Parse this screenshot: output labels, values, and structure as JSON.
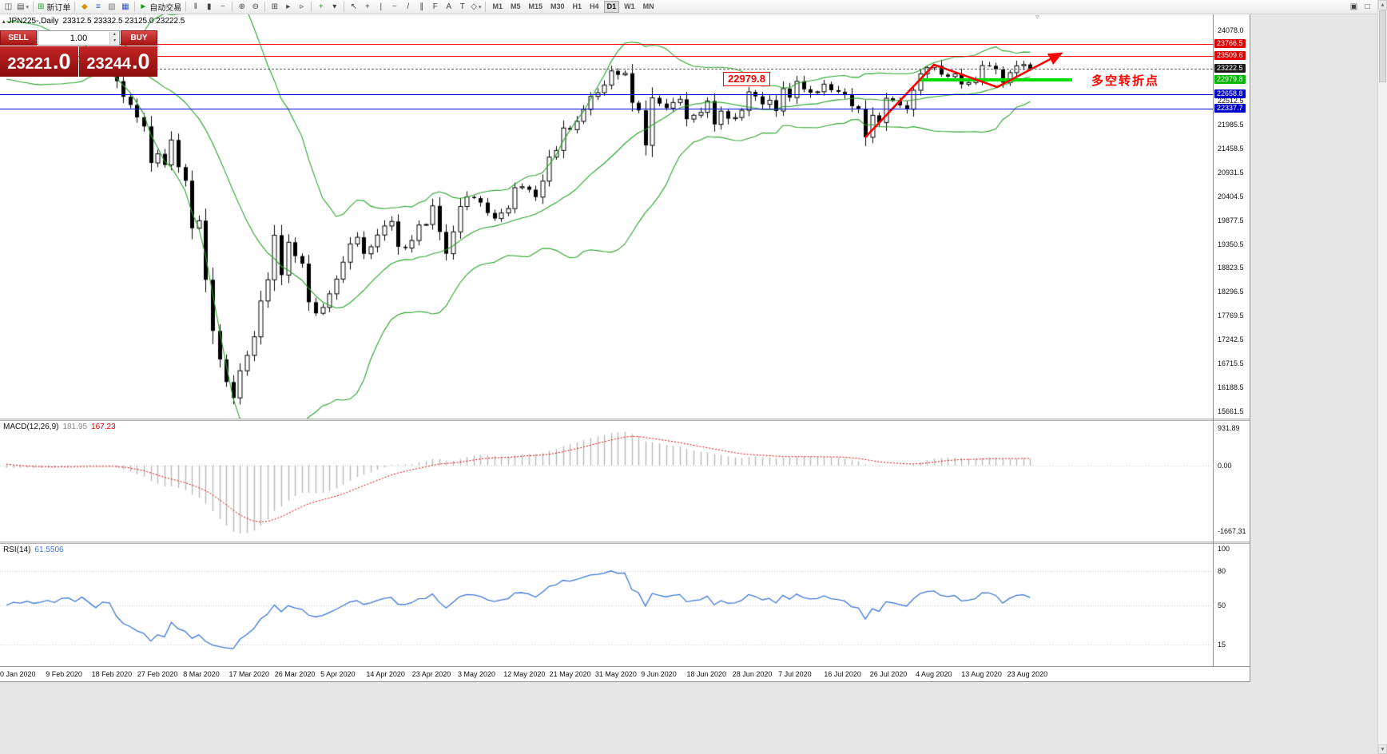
{
  "glyphs": {
    "one_click_toggle": "▴",
    "dropdown": "▾",
    "spinner_up": "▴",
    "spinner_down": "▾",
    "scroll_up": "▲",
    "scroll_down": "▼",
    "chart_shift_marker": "▿"
  },
  "colors": {
    "bollinger": "#28a428",
    "resistance_line": "#ff0000",
    "support_line": "#0000dd",
    "pivot_line": "#00dd00",
    "current_price_line": "#666666",
    "macd_histogram": "#b8b8b8",
    "macd_signal": "#e00000",
    "rsi_line": "#3c78d8",
    "candle_up": "#ffffff",
    "candle_down": "#000000",
    "annotation_red": "#ff0000"
  },
  "toolbar": {
    "left_items": [
      {
        "name": "new-chart",
        "glyph": "◫"
      },
      {
        "name": "chart-profiles",
        "glyph": "▤",
        "dropdown": true
      },
      {
        "sep": true
      },
      {
        "name": "new-order",
        "glyph": "⊞",
        "color": "#1a9c1a",
        "label": "新订单"
      },
      {
        "sep": true
      },
      {
        "name": "metaeditor",
        "glyph": "◆",
        "color": "#d89000"
      },
      {
        "name": "market-watch",
        "glyph": "≡",
        "color": "#3355bb"
      },
      {
        "name": "navigator",
        "glyph": "▧",
        "color": "#777777"
      },
      {
        "name": "terminal",
        "glyph": "▦",
        "color": "#3355bb"
      },
      {
        "sep": true
      },
      {
        "name": "autotrading",
        "glyph": "►",
        "color": "#18a018",
        "label": "自动交易"
      },
      {
        "sep": true
      },
      {
        "name": "bar-chart",
        "glyph": "‖"
      },
      {
        "name": "candlestick-chart",
        "glyph": "▮"
      },
      {
        "name": "line-chart",
        "glyph": "~"
      },
      {
        "sep": true
      },
      {
        "name": "zoom-in",
        "glyph": "⊕"
      },
      {
        "name": "zoom-out",
        "glyph": "⊖"
      },
      {
        "sep": true
      },
      {
        "name": "tile-windows",
        "glyph": "⊞"
      },
      {
        "name": "auto-scroll",
        "glyph": "▸"
      },
      {
        "name": "chart-shift",
        "glyph": "▹"
      },
      {
        "sep": true
      },
      {
        "name": "indicators",
        "glyph": "+",
        "color": "#18a018"
      },
      {
        "name": "indicator-list",
        "glyph": "▾"
      },
      {
        "sep": true
      },
      {
        "name": "cursor",
        "glyph": "↖"
      },
      {
        "name": "crosshair",
        "glyph": "+"
      },
      {
        "name": "vertical-line",
        "glyph": "|"
      },
      {
        "name": "horizontal-line",
        "glyph": "−"
      },
      {
        "name": "trendline",
        "glyph": "/"
      },
      {
        "name": "channel",
        "glyph": "∥"
      },
      {
        "name": "fibonacci",
        "glyph": "F"
      },
      {
        "name": "text",
        "glyph": "A"
      },
      {
        "name": "text-label",
        "glyph": "T"
      },
      {
        "name": "arrows",
        "glyph": "◇",
        "dropdown": true
      },
      {
        "sep": true
      }
    ],
    "timeframes": [
      "M1",
      "M5",
      "M15",
      "M30",
      "H1",
      "H4",
      "D1",
      "W1",
      "MN"
    ],
    "active_timeframe": "D1",
    "right_items": [
      {
        "name": "print",
        "glyph": "▣"
      },
      {
        "name": "print-preview",
        "glyph": "□"
      }
    ]
  },
  "chart_title": {
    "symbol_period": "JPN225-,Daily",
    "ohlc": "23312.5 23332.5 23125.0 23222.5"
  },
  "trade_panel": {
    "sell_label": "SELL",
    "buy_label": "BUY",
    "volume": "1.00",
    "sell_price_main": "23221",
    "sell_price_pips": ".0",
    "buy_price_main": "23244",
    "buy_price_pips": ".0"
  },
  "price_axis": {
    "plain_labels": [
      24078.0,
      22512.5,
      21985.5,
      21458.5,
      20931.5,
      20404.5,
      19877.5,
      19350.5,
      18823.5,
      18296.5,
      17769.5,
      17242.5,
      16715.5,
      16188.5,
      15661.5
    ],
    "badges": [
      {
        "value": 23766.5,
        "bg": "#e00000"
      },
      {
        "value": 23509.6,
        "bg": "#e00000"
      },
      {
        "value": 23222.5,
        "bg": "#1a1a1a"
      },
      {
        "value": 22979.8,
        "bg": "#00b800"
      },
      {
        "value": 22658.8,
        "bg": "#0000cc"
      },
      {
        "value": 22337.7,
        "bg": "#0000cc"
      }
    ]
  },
  "levels": {
    "resistance_red": [
      23766.5,
      23509.6
    ],
    "support_blue": [
      22658.8,
      22337.7
    ],
    "pivot_green": 22979.8,
    "current_price": 23222.5
  },
  "annotations": {
    "price_note": "22979.8",
    "pivot_text": "多空转折点"
  },
  "macd": {
    "label": "MACD(12,26,9)",
    "value_main": "181.95",
    "value_signal": "167.23",
    "axis": [
      931.89,
      0,
      -1667.31
    ]
  },
  "rsi": {
    "label": "RSI(14)",
    "value": "61.5506",
    "axis": [
      100,
      80,
      50,
      15
    ],
    "levels": [
      80,
      50,
      15
    ]
  },
  "time_axis": {
    "labels": [
      "0 Jan 2020",
      "9 Feb 2020",
      "18 Feb 2020",
      "27 Feb 2020",
      "8 Mar 2020",
      "17 Mar 2020",
      "26 Mar 2020",
      "5 Apr 2020",
      "14 Apr 2020",
      "23 Apr 2020",
      "3 May 2020",
      "12 May 2020",
      "21 May 2020",
      "31 May 2020",
      "9 Jun 2020",
      "18 Jun 2020",
      "28 Jun 2020",
      "7 Jul 2020",
      "16 Jul 2020",
      "26 Jul 2020",
      "4 Aug 2020",
      "13 Aug 2020",
      "23 Aug 2020"
    ]
  },
  "chart_data": {
    "type": "candlestick",
    "symbol": "JPN225-",
    "timeframe": "Daily",
    "value_range": [
      15600,
      24250
    ],
    "overlays": [
      {
        "name": "Bollinger Bands",
        "period": 20,
        "deviation": 2
      }
    ],
    "panes": [
      {
        "name": "MACD",
        "params": "12,26,9"
      },
      {
        "name": "RSI",
        "params": "14"
      }
    ],
    "last_ohlc": {
      "open": 23312.5,
      "high": 23332.5,
      "low": 23125.0,
      "close": 23222.5
    },
    "warmup_closes": [
      23205,
      23575,
      23740,
      23850,
      23740,
      23915,
      24041,
      23933,
      23808,
      23865,
      23795,
      23870,
      24032,
      23828,
      23340,
      23215,
      23380,
      23290,
      22977,
      23205
    ],
    "closes": [
      23205,
      23320,
      23290,
      23360,
      23290,
      23330,
      23390,
      23330,
      23460,
      23480,
      23390,
      23520,
      23390,
      23240,
      23400,
      23380,
      22950,
      22605,
      22426,
      22150,
      21950,
      21143,
      21344,
      21100,
      21650,
      21050,
      20750,
      19700,
      19867,
      18560,
      17431,
      16800,
      16300,
      15950,
      16550,
      16890,
      17300,
      18092,
      18560,
      19546,
      18665,
      19389,
      19085,
      18917,
      18065,
      17820,
      17950,
      18250,
      18576,
      18950,
      19353,
      19500,
      19135,
      19290,
      19550,
      19750,
      19850,
      19290,
      19262,
      19429,
      19771,
      19783,
      20194,
      19619,
      19137,
      19620,
      20180,
      20391,
      20366,
      20267,
      20037,
      19915,
      20037,
      20134,
      20595,
      20618,
      20552,
      20388,
      20741,
      21271,
      21419,
      21916,
      21878,
      22062,
      22326,
      22614,
      22696,
      22864,
      23178,
      23091,
      23125,
      22473,
      22306,
      21531,
      22582,
      22455,
      22355,
      22479,
      22549,
      22112,
      22197,
      22260,
      22512,
      21995,
      22288,
      22122,
      22146,
      22306,
      22714,
      22615,
      22439,
      22530,
      22291,
      22785,
      22587,
      22946,
      22770,
      22696,
      22717,
      22884,
      22751,
      22715,
      22657,
      22397,
      22339,
      21710,
      22195,
      22036,
      22573,
      22514,
      22418,
      22330,
      22750,
      23110,
      23249,
      23289,
      23096,
      23051,
      23110,
      22880,
      22920,
      22985,
      23296,
      23290,
      23208,
      22920,
      23139,
      23290,
      23320,
      23222.5
    ]
  }
}
